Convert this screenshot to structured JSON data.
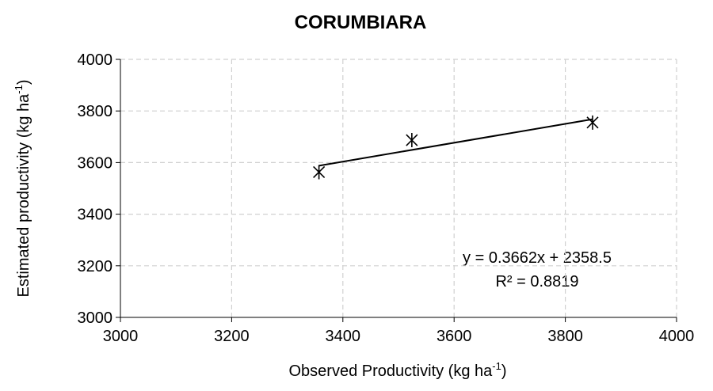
{
  "chart_data": {
    "type": "scatter",
    "title": "CORUMBIARA",
    "x_label": {
      "text": "Observed Productivity (kg ha",
      "sup": "-1",
      "end": ")"
    },
    "y_label": {
      "text": "Estimated productivity (kg ha",
      "sup": "-1",
      "end": ")"
    },
    "series": [
      {
        "name": "Corumbiara",
        "color": "#000000",
        "x": [
          3357,
          3524,
          3849
        ],
        "values": [
          3563,
          3687,
          3755
        ]
      }
    ],
    "trendline": {
      "slope": 0.3662,
      "intercept": 2358.5,
      "equation": "y = 0.3662x + 2358.5",
      "r2": "R² = 0.8819"
    },
    "xlim": [
      3000,
      4000
    ],
    "xticks": [
      3000,
      3200,
      3400,
      3600,
      3800,
      4000
    ],
    "ylim": [
      3000,
      4000
    ],
    "yticks": [
      3000,
      3200,
      3400,
      3600,
      3800,
      4000
    ],
    "grid": true
  }
}
